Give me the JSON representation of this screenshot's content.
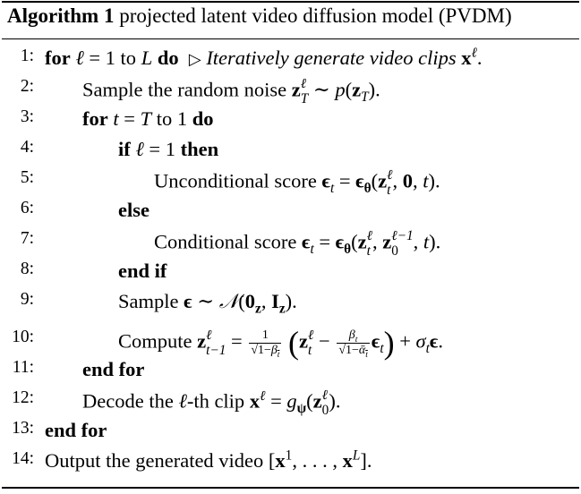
{
  "algorithm": {
    "label": "Algorithm 1",
    "title": "projected latent video diffusion model (PVDM)"
  },
  "lines": [
    {
      "num": "1:",
      "kw1": "for",
      "text": "ℓ = 1 to L",
      "kw2": "do",
      "comment": "▷ Iteratively generate video clips xℓ."
    },
    {
      "num": "2:",
      "text": "Sample the random noise zℓT ∼ p(zT)."
    },
    {
      "num": "3:",
      "kw1": "for",
      "text": "t = T to 1",
      "kw2": "do"
    },
    {
      "num": "4:",
      "kw1": "if",
      "text": "ℓ = 1",
      "kw2": "then"
    },
    {
      "num": "5:",
      "text": "Unconditional score ϵt = ϵθ(zℓt, 0, t)."
    },
    {
      "num": "6:",
      "kw1": "else"
    },
    {
      "num": "7:",
      "text": "Conditional score ϵt = ϵθ(zℓt, zℓ−10, t)."
    },
    {
      "num": "8:",
      "kw1": "end if"
    },
    {
      "num": "9:",
      "text": "Sample ϵ ∼ 𝒩(0z, Iz)."
    },
    {
      "num": "10:",
      "text": "Compute zℓt−1 = 1/√(1−βt) (zℓt − βt/√(1−ᾱt) ϵt) + σtϵ."
    },
    {
      "num": "11:",
      "kw1": "end for"
    },
    {
      "num": "12:",
      "text": "Decode the ℓ-th clip xℓ = gψ(zℓ0)."
    },
    {
      "num": "13:",
      "kw1": "end for"
    },
    {
      "num": "14:",
      "text": "Output the generated video [x1, . . . , xL]."
    }
  ]
}
